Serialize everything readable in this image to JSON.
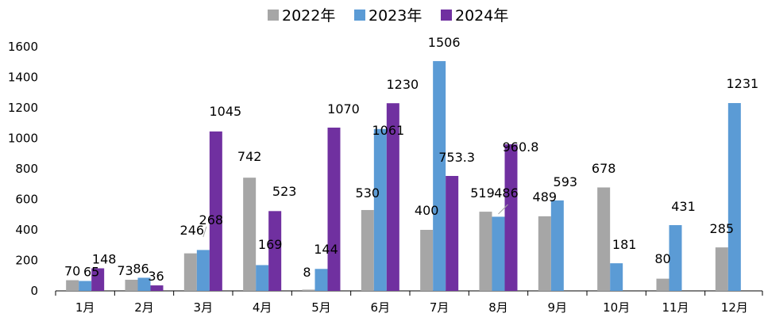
{
  "chart_data": {
    "type": "bar",
    "categories": [
      "1月",
      "2月",
      "3月",
      "4月",
      "5月",
      "6月",
      "7月",
      "8月",
      "9月",
      "10月",
      "11月",
      "12月"
    ],
    "series": [
      {
        "name": "2022年",
        "color": "#A6A6A6",
        "values": [
          70,
          73,
          246,
          742,
          8,
          530,
          400,
          519,
          489,
          678,
          80,
          285
        ],
        "labels": [
          "70",
          "73",
          "246",
          "742",
          "8",
          "530",
          "400",
          "519",
          "489",
          "678",
          "80",
          "285"
        ]
      },
      {
        "name": "2023年",
        "color": "#5B9BD5",
        "values": [
          65,
          86,
          268,
          169,
          144,
          1061,
          1506,
          486,
          593,
          181,
          431,
          1231
        ],
        "labels": [
          "65",
          "86",
          "268",
          "169",
          "144",
          "1061",
          "1506",
          "486",
          "593",
          "181",
          "431",
          "1231"
        ]
      },
      {
        "name": "2024年",
        "color": "#7030A0",
        "values": [
          148,
          36,
          1045,
          523,
          1070,
          1230,
          753.3,
          960.8,
          null,
          null,
          null,
          null
        ],
        "labels": [
          "148",
          "36",
          "1045",
          "523",
          "1070",
          "1230",
          "753.3",
          "960.8",
          null,
          null,
          null,
          null
        ]
      }
    ],
    "yticks": [
      0,
      200,
      400,
      600,
      800,
      1000,
      1200,
      1400,
      1600
    ],
    "ylim": [
      0,
      1600
    ],
    "legend": "top-center",
    "grid": false
  }
}
